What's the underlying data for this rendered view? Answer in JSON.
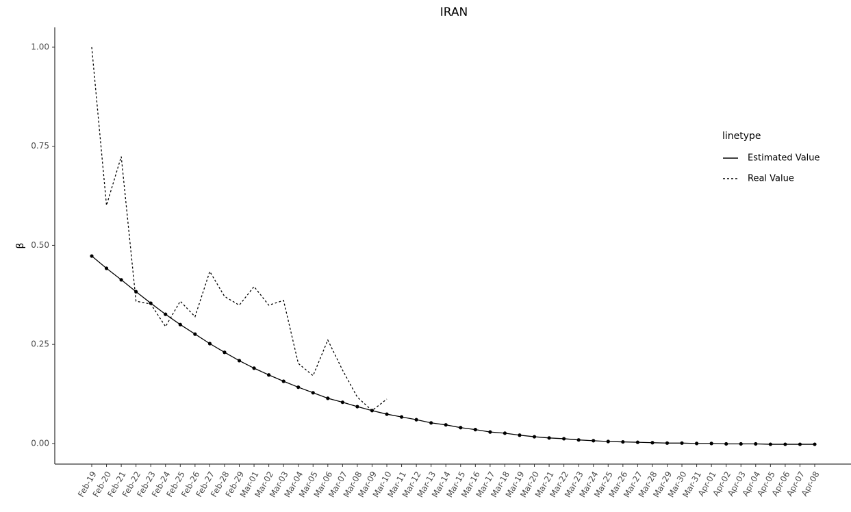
{
  "chart_data": {
    "type": "line",
    "title": "IRAN",
    "y_label": "β",
    "legend_title": "linetype",
    "legend": "right",
    "categories": [
      "Feb-19",
      "Feb-20",
      "Feb-21",
      "Feb-22",
      "Feb-23",
      "Feb-24",
      "Feb-25",
      "Feb-26",
      "Feb-27",
      "Feb-28",
      "Feb-29",
      "Mar-01",
      "Mar-02",
      "Mar-03",
      "Mar-04",
      "Mar-05",
      "Mar-06",
      "Mar-07",
      "Mar-08",
      "Mar-09",
      "Mar-10",
      "Mar-11",
      "Mar-12",
      "Mar-13",
      "Mar-14",
      "Mar-15",
      "Mar-16",
      "Mar-17",
      "Mar-18",
      "Mar-19",
      "Mar-20",
      "Mar-21",
      "Mar-22",
      "Mar-23",
      "Mar-24",
      "Mar-25",
      "Mar-26",
      "Mar-27",
      "Mar-28",
      "Mar-29",
      "Mar-30",
      "Mar-31",
      "Apr-01",
      "Apr-02",
      "Apr-03",
      "Apr-04",
      "Apr-05",
      "Apr-06",
      "Apr-07",
      "Apr-08"
    ],
    "series": [
      {
        "name": "Estimated Value",
        "color": "#000000",
        "linestyle": "solid",
        "markers": true,
        "values": [
          0.473,
          0.442,
          0.413,
          0.383,
          0.354,
          0.326,
          0.3,
          0.276,
          0.252,
          0.23,
          0.209,
          0.19,
          0.173,
          0.157,
          0.142,
          0.128,
          0.114,
          0.104,
          0.093,
          0.083,
          0.074,
          0.067,
          0.06,
          0.052,
          0.047,
          0.04,
          0.035,
          0.029,
          0.026,
          0.021,
          0.017,
          0.014,
          0.012,
          0.009,
          0.007,
          0.005,
          0.004,
          0.003,
          0.002,
          0.001,
          0.001,
          0.0,
          0.0,
          -0.001,
          -0.001,
          -0.001,
          -0.002,
          -0.002,
          -0.002,
          -0.002
        ]
      },
      {
        "name": "Real Value",
        "color": "#000000",
        "linestyle": "dotted",
        "markers": false,
        "values": [
          1.0,
          0.601,
          0.724,
          0.359,
          0.352,
          0.295,
          0.359,
          0.32,
          0.434,
          0.371,
          0.349,
          0.396,
          0.349,
          0.361,
          0.202,
          0.171,
          0.261,
          0.185,
          0.117,
          0.083,
          0.112,
          null,
          null,
          null,
          null,
          null,
          null,
          null,
          null,
          null,
          null,
          null,
          null,
          null,
          null,
          null,
          null,
          null,
          null,
          null,
          null,
          null,
          null,
          null,
          null,
          null,
          null,
          null,
          null,
          null
        ]
      }
    ],
    "ylim": [
      -0.052,
      1.05
    ],
    "yticks": [
      {
        "value": 0,
        "label": "0.00"
      },
      {
        "value": 0.25,
        "label": "0.25"
      },
      {
        "value": 0.5,
        "label": "0.50"
      },
      {
        "value": 0.75,
        "label": "0.75"
      },
      {
        "value": 1,
        "label": "1.00"
      }
    ],
    "grid": false
  }
}
